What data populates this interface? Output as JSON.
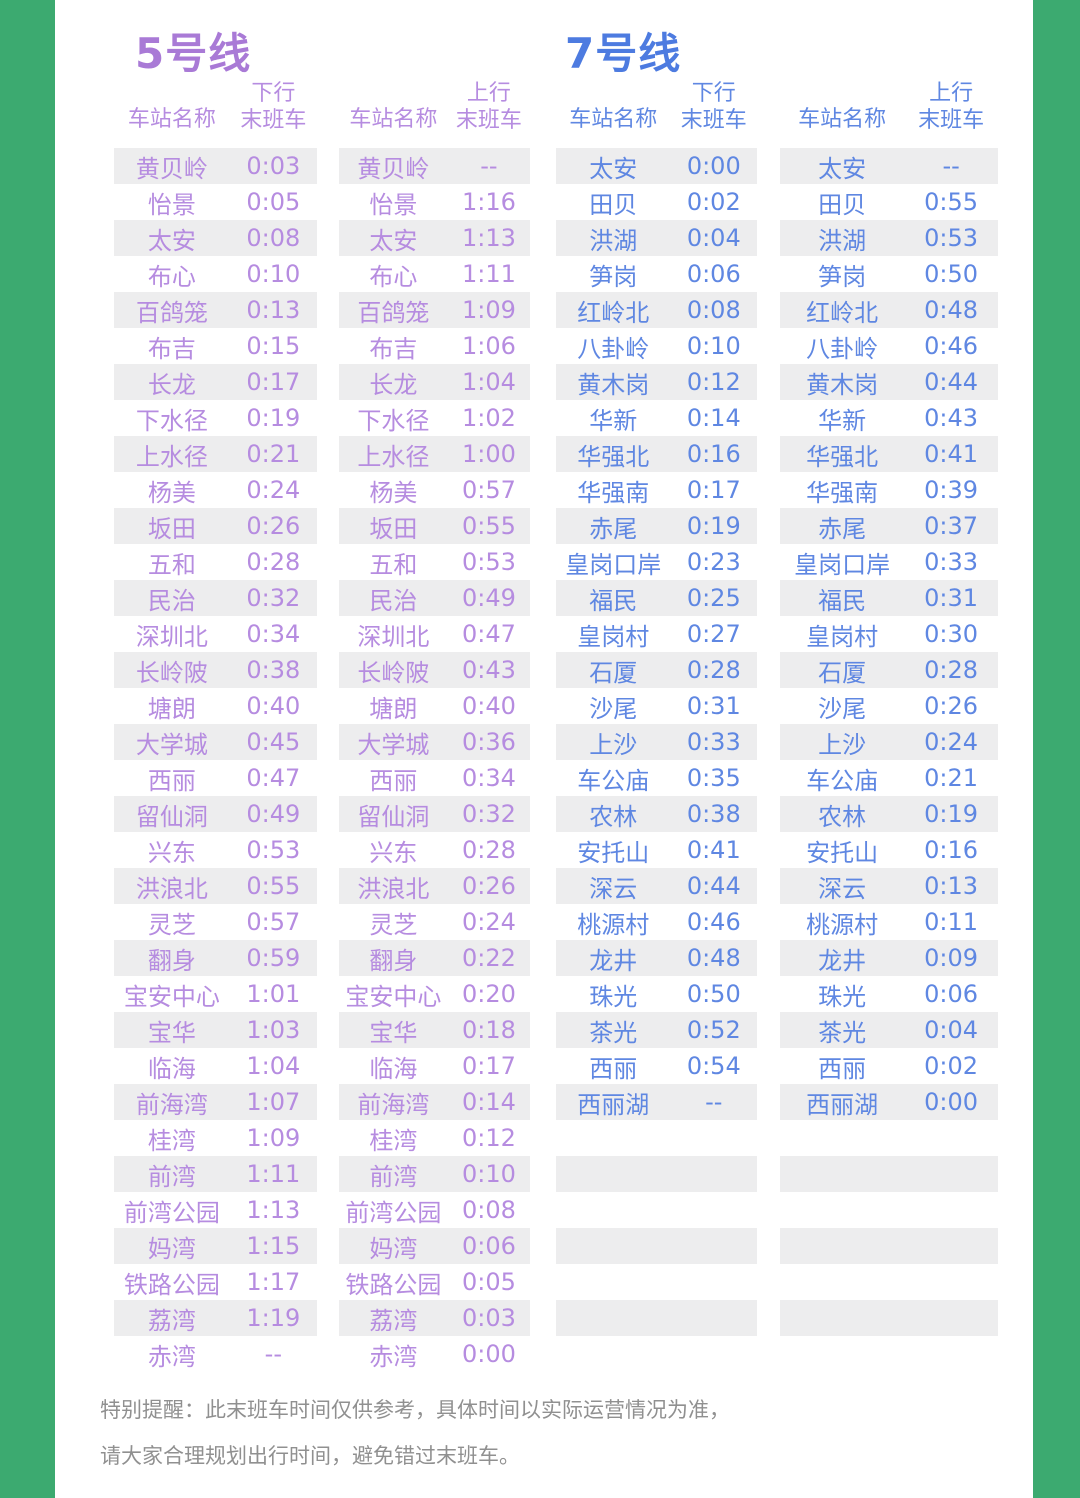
{
  "page": {
    "frame_color": "#3caa70",
    "background_color": "#ffffff",
    "row_shade_color": "#ededee"
  },
  "table": {
    "row_count": 34
  },
  "lines": [
    {
      "title": "5号线",
      "title_color": "#a97ad6",
      "text_color": "#b68ce0",
      "header_station": "车站名称",
      "down_header_line1": "下行",
      "down_header_line2": "末班车",
      "up_header_line1": "上行",
      "up_header_line2": "末班车",
      "stations": [
        "黄贝岭",
        "怡景",
        "太安",
        "布心",
        "百鸽笼",
        "布吉",
        "长龙",
        "下水径",
        "上水径",
        "杨美",
        "坂田",
        "五和",
        "民治",
        "深圳北",
        "长岭陂",
        "塘朗",
        "大学城",
        "西丽",
        "留仙洞",
        "兴东",
        "洪浪北",
        "灵芝",
        "翻身",
        "宝安中心",
        "宝华",
        "临海",
        "前海湾",
        "桂湾",
        "前湾",
        "前湾公园",
        "妈湾",
        "铁路公园",
        "荔湾",
        "赤湾"
      ],
      "down_times": [
        "0:03",
        "0:05",
        "0:08",
        "0:10",
        "0:13",
        "0:15",
        "0:17",
        "0:19",
        "0:21",
        "0:24",
        "0:26",
        "0:28",
        "0:32",
        "0:34",
        "0:38",
        "0:40",
        "0:45",
        "0:47",
        "0:49",
        "0:53",
        "0:55",
        "0:57",
        "0:59",
        "1:01",
        "1:03",
        "1:04",
        "1:07",
        "1:09",
        "1:11",
        "1:13",
        "1:15",
        "1:17",
        "1:19",
        "--"
      ],
      "up_times": [
        "--",
        "1:16",
        "1:13",
        "1:11",
        "1:09",
        "1:06",
        "1:04",
        "1:02",
        "1:00",
        "0:57",
        "0:55",
        "0:53",
        "0:49",
        "0:47",
        "0:43",
        "0:40",
        "0:36",
        "0:34",
        "0:32",
        "0:28",
        "0:26",
        "0:24",
        "0:22",
        "0:20",
        "0:18",
        "0:17",
        "0:14",
        "0:12",
        "0:10",
        "0:08",
        "0:06",
        "0:05",
        "0:03",
        "0:00"
      ]
    },
    {
      "title": "7号线",
      "title_color": "#4d7be0",
      "text_color": "#5f87e2",
      "header_station": "车站名称",
      "down_header_line1": "下行",
      "down_header_line2": "末班车",
      "up_header_line1": "上行",
      "up_header_line2": "末班车",
      "stations": [
        "太安",
        "田贝",
        "洪湖",
        "笋岗",
        "红岭北",
        "八卦岭",
        "黄木岗",
        "华新",
        "华强北",
        "华强南",
        "赤尾",
        "皇岗口岸",
        "福民",
        "皇岗村",
        "石厦",
        "沙尾",
        "上沙",
        "车公庙",
        "农林",
        "安托山",
        "深云",
        "桃源村",
        "龙井",
        "珠光",
        "茶光",
        "西丽",
        "西丽湖"
      ],
      "down_times": [
        "0:00",
        "0:02",
        "0:04",
        "0:06",
        "0:08",
        "0:10",
        "0:12",
        "0:14",
        "0:16",
        "0:17",
        "0:19",
        "0:23",
        "0:25",
        "0:27",
        "0:28",
        "0:31",
        "0:33",
        "0:35",
        "0:38",
        "0:41",
        "0:44",
        "0:46",
        "0:48",
        "0:50",
        "0:52",
        "0:54",
        "--"
      ],
      "up_times": [
        "--",
        "0:55",
        "0:53",
        "0:50",
        "0:48",
        "0:46",
        "0:44",
        "0:43",
        "0:41",
        "0:39",
        "0:37",
        "0:33",
        "0:31",
        "0:30",
        "0:28",
        "0:26",
        "0:24",
        "0:21",
        "0:19",
        "0:16",
        "0:13",
        "0:11",
        "0:09",
        "0:06",
        "0:04",
        "0:02",
        "0:00"
      ]
    }
  ],
  "footer": {
    "line1": "特别提醒：此末班车时间仅供参考，具体时间以实际运营情况为准，",
    "line2": "请大家合理规划出行时间，避免错过末班车。",
    "text_color": "#909090"
  }
}
